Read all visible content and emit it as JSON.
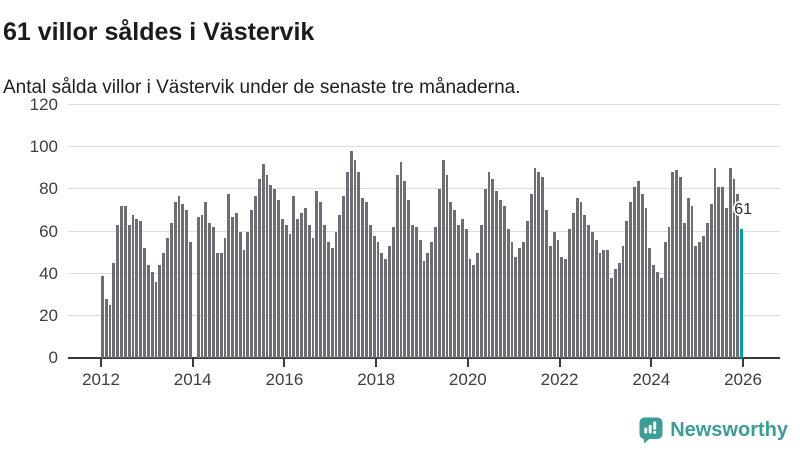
{
  "chart_data": {
    "type": "bar",
    "title": "61 villor såldes i Västervik",
    "subtitle": "Antal sålda villor i Västervik under de senaste tre månaderna.",
    "start_year": 2012,
    "months_per_bar": 1,
    "x_ticks": [
      "2012",
      "2014",
      "2016",
      "2018",
      "2020",
      "2022",
      "2024",
      "2026"
    ],
    "y_ticks": [
      0,
      20,
      40,
      60,
      80,
      100,
      120
    ],
    "ylim": [
      0,
      120
    ],
    "grid": "horizontal",
    "legend": "none",
    "bar_color": "#6d6d75",
    "values": [
      39,
      28,
      25,
      45,
      63,
      72,
      72,
      63,
      68,
      66,
      65,
      52,
      44,
      41,
      36,
      44,
      50,
      57,
      64,
      74,
      77,
      73,
      70,
      55,
      0,
      67,
      68,
      74,
      64,
      62,
      50,
      50,
      57,
      78,
      67,
      69,
      60,
      51,
      60,
      70,
      77,
      85,
      92,
      87,
      82,
      80,
      75,
      66,
      63,
      59,
      77,
      66,
      69,
      71,
      63,
      57,
      79,
      74,
      63,
      55,
      52,
      60,
      68,
      77,
      88,
      98,
      94,
      88,
      76,
      74,
      63,
      58,
      55,
      50,
      47,
      53,
      62,
      87,
      93,
      84,
      75,
      63,
      62,
      56,
      46,
      50,
      55,
      62,
      80,
      94,
      87,
      74,
      70,
      63,
      66,
      61,
      47,
      44,
      50,
      63,
      80,
      88,
      85,
      79,
      75,
      72,
      61,
      55,
      48,
      52,
      55,
      65,
      78,
      90,
      88,
      86,
      70,
      53,
      60,
      56,
      48,
      47,
      61,
      69,
      76,
      74,
      68,
      63,
      60,
      56,
      50,
      51,
      51,
      38,
      42,
      45,
      53,
      65,
      74,
      81,
      84,
      78,
      71,
      52,
      44,
      41,
      38,
      55,
      62,
      88,
      89,
      86,
      64,
      76,
      72,
      53,
      55,
      58,
      64,
      73,
      90,
      81,
      81,
      71,
      90,
      85,
      78,
      61
    ],
    "highlight": {
      "index": 167,
      "value": 61,
      "label": "61",
      "color": "#00a0a2"
    }
  },
  "colors": {
    "background": "#ffffff",
    "bar": "#6d6d75",
    "highlight": "#00a0a2",
    "gridline": "#dcdcdc",
    "axis": "#3a3a3a",
    "brand": "#3a9e96"
  },
  "footer": {
    "brand": "Newsworthy",
    "icon": "newsworthy-speech-bubble-chart-icon"
  }
}
